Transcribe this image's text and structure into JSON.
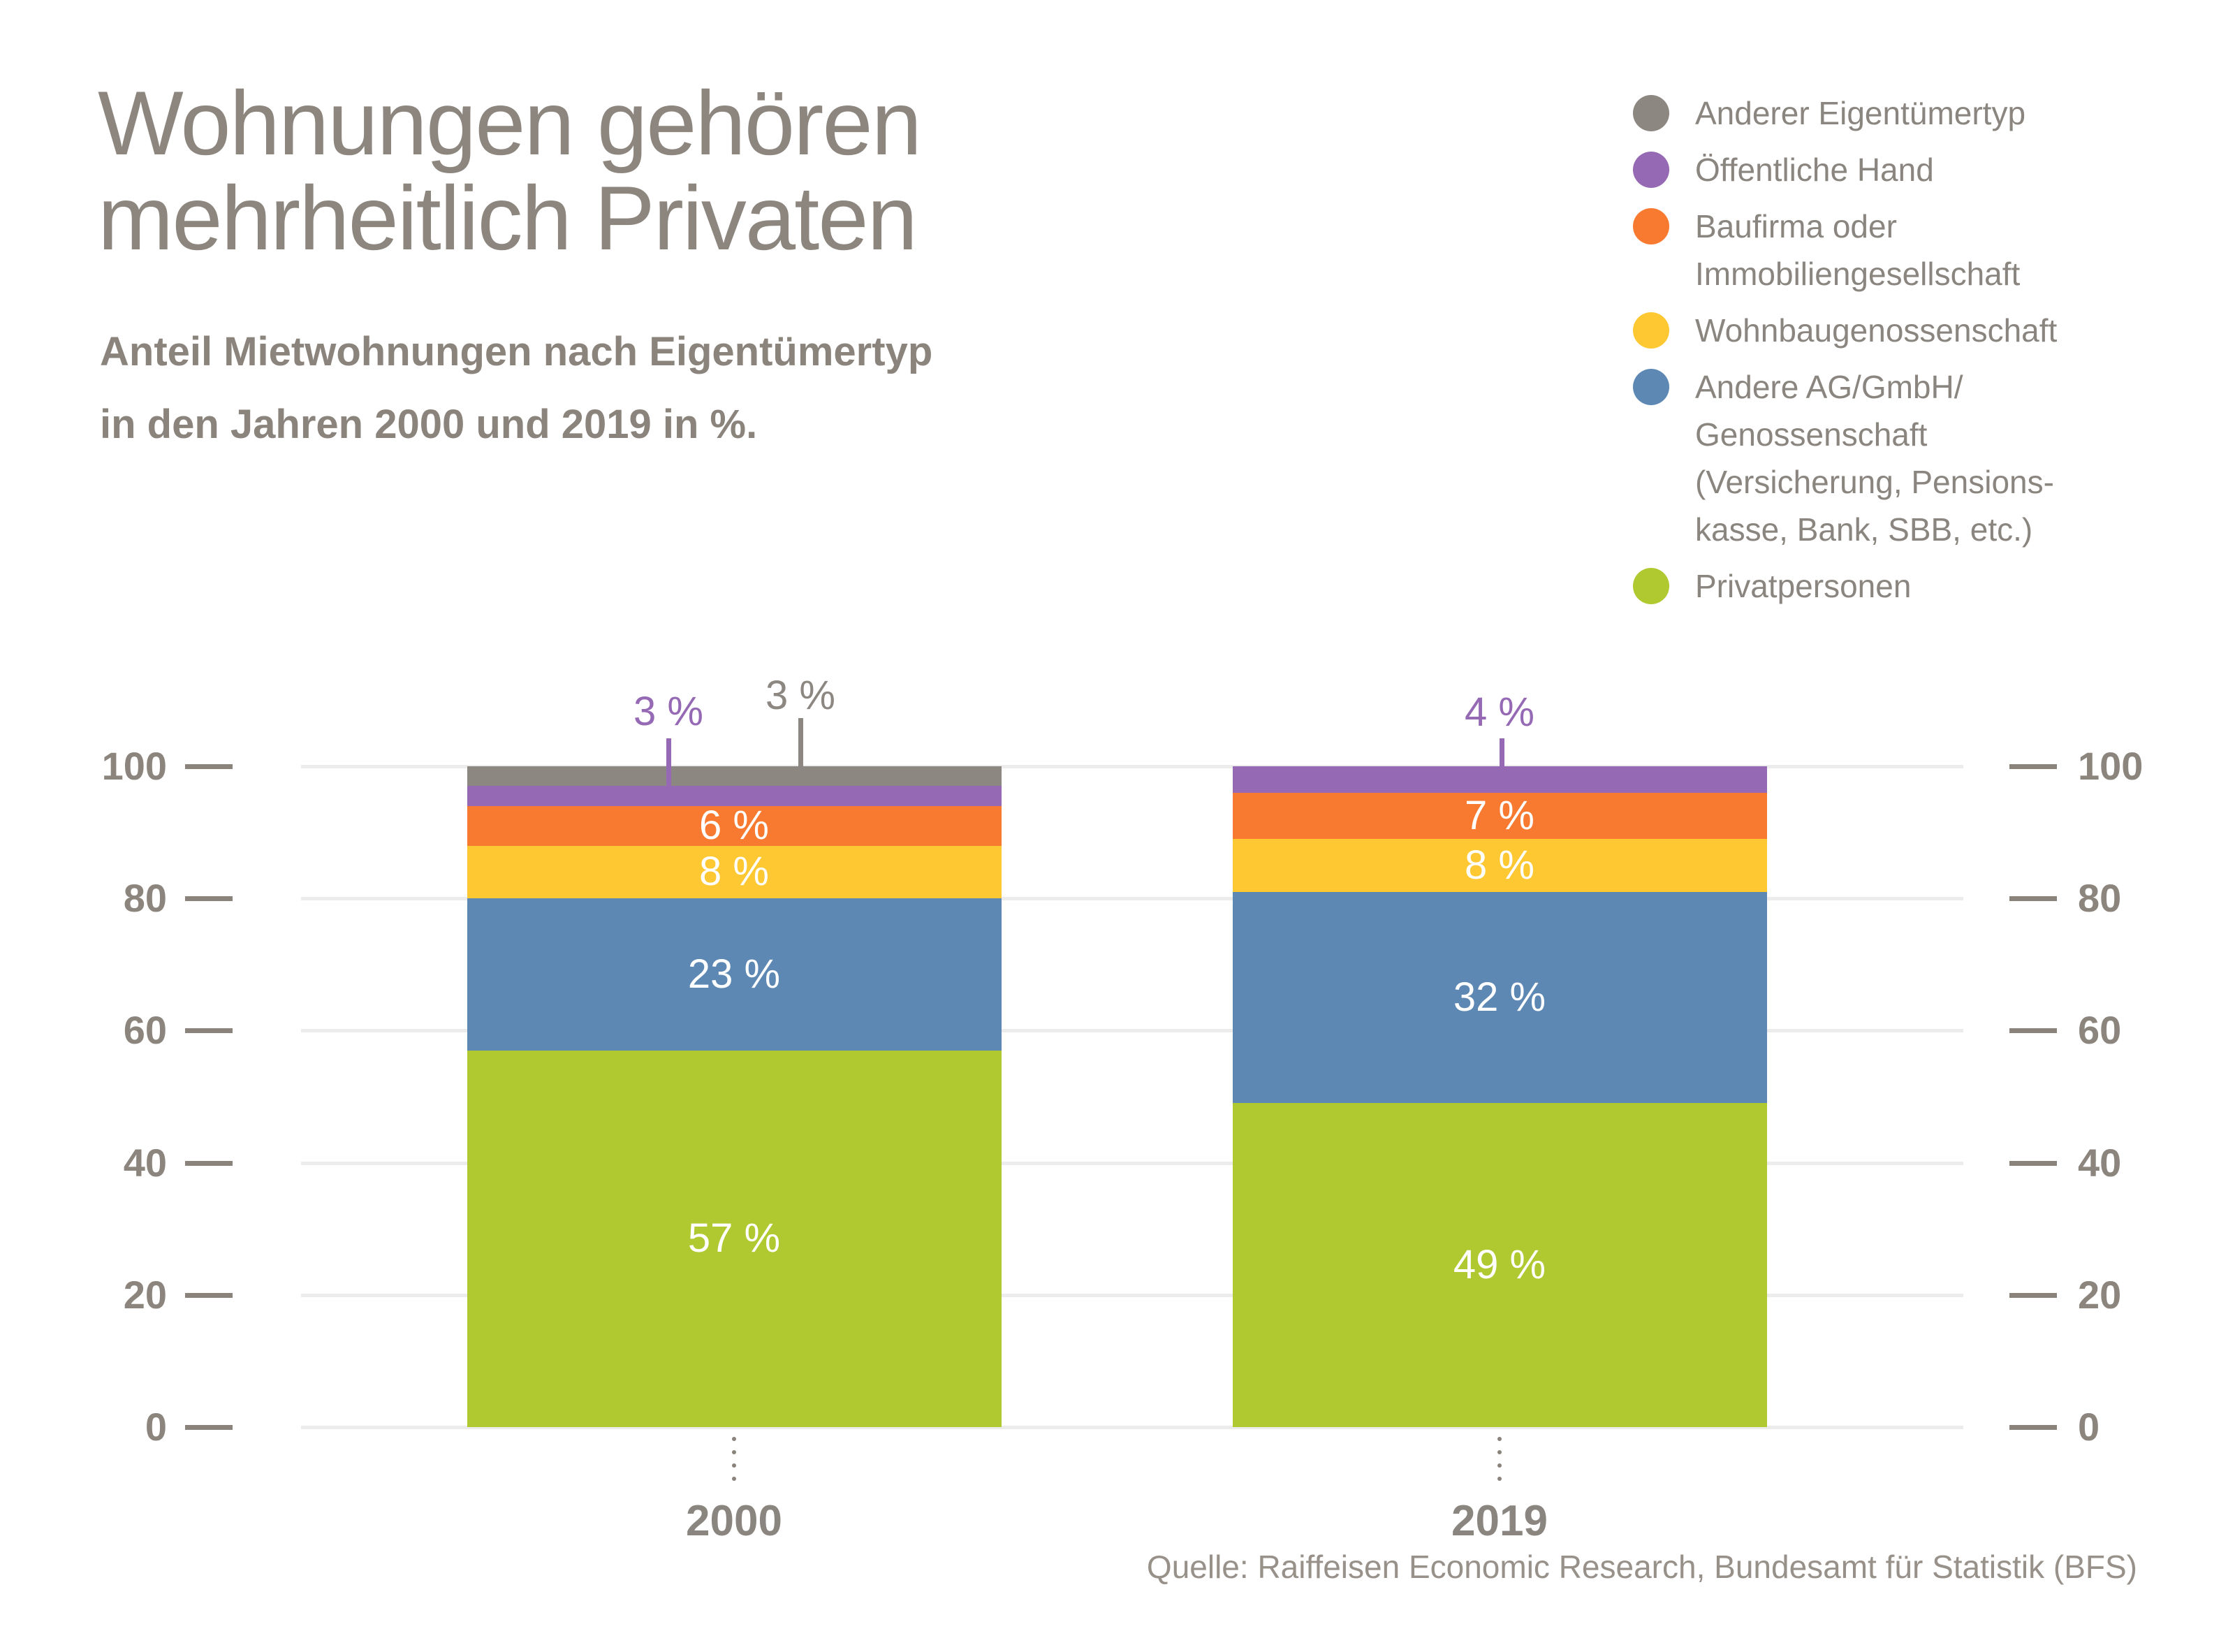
{
  "header": {
    "title_line1": "Wohnungen gehören",
    "title_line2": "mehrheitlich Privaten",
    "subtitle_line1": "Anteil Mietwohnungen nach Eigentümertyp",
    "subtitle_line2": "in den Jahren 2000 und 2019 in %."
  },
  "legend": {
    "items": [
      {
        "label": "Anderer Eigentümertyp",
        "lines": [
          "Anderer Eigentümertyp"
        ],
        "color": "#8C8781"
      },
      {
        "label": "Öffentliche Hand",
        "lines": [
          "Öffentliche Hand"
        ],
        "color": "#9569B4"
      },
      {
        "label": "Baufirma oder Immobiliengesellschaft",
        "lines": [
          "Baufirma oder",
          "Immobiliengesellschaft"
        ],
        "color": "#F87A30"
      },
      {
        "label": "Wohnbaugenossenschaft",
        "lines": [
          "Wohnbaugenossenschaft"
        ],
        "color": "#FDC832"
      },
      {
        "label": "Andere AG/GmbH/Genossenschaft (Versicherung, Pensionskasse, Bank, SBB, etc.)",
        "lines": [
          "Andere AG/GmbH/",
          "Genossenschaft",
          "(Versicherung, Pensions-",
          "kasse, Bank, SBB, etc.)"
        ],
        "color": "#5D88B4"
      },
      {
        "label": "Privatpersonen",
        "lines": [
          "Privatpersonen"
        ],
        "color": "#B1C930"
      }
    ]
  },
  "chart_data": {
    "type": "bar",
    "stacked": true,
    "title": "Wohnungen gehören mehrheitlich Privaten",
    "subtitle": "Anteil Mietwohnungen nach Eigentümertyp in den Jahren 2000 und 2019 in %.",
    "categories": [
      "2000",
      "2019"
    ],
    "unit": "%",
    "ylim": [
      0,
      100
    ],
    "yticks": [
      0,
      20,
      40,
      60,
      80,
      100
    ],
    "grid": true,
    "legend_position": "top-right",
    "series": [
      {
        "name": "Privatpersonen",
        "color": "#B1C930",
        "values": [
          57,
          49
        ],
        "labels": [
          "57 %",
          "49 %"
        ],
        "label_position": "inside"
      },
      {
        "name": "Andere AG/GmbH/Genossenschaft (Versicherung, Pensionskasse, Bank, SBB, etc.)",
        "color": "#5D88B4",
        "values": [
          23,
          32
        ],
        "labels": [
          "23 %",
          "32 %"
        ],
        "label_position": "inside"
      },
      {
        "name": "Wohnbaugenossenschaft",
        "color": "#FDC832",
        "values": [
          8,
          8
        ],
        "labels": [
          "8 %",
          "8 %"
        ],
        "label_position": "inside"
      },
      {
        "name": "Baufirma oder Immobiliengesellschaft",
        "color": "#F87A30",
        "values": [
          6,
          7
        ],
        "labels": [
          "6 %",
          "7 %"
        ],
        "label_position": "inside"
      },
      {
        "name": "Öffentliche Hand",
        "color": "#9569B4",
        "values": [
          3,
          4
        ],
        "labels": [
          "3 %",
          "4 %"
        ],
        "label_position": "above"
      },
      {
        "name": "Anderer Eigentümertyp",
        "color": "#8C8781",
        "values": [
          3,
          0
        ],
        "labels": [
          "3 %",
          ""
        ],
        "label_position": "above"
      }
    ]
  },
  "footer": {
    "source": "Quelle: Raiffeisen Economic Research, Bundesamt für Statistik (BFS)"
  },
  "colors": {
    "text": "#8B857E",
    "grid": "#ECECEC",
    "tick": "#8A837C",
    "label_on_bar": "#FFFFFF",
    "source_text": "#97918A"
  }
}
